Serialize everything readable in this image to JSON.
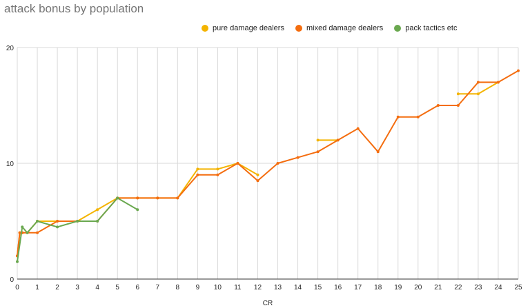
{
  "chart_data": {
    "type": "line",
    "title": "attack bonus by population",
    "xlabel": "CR",
    "ylabel": "",
    "xlim": [
      0,
      25
    ],
    "ylim": [
      0,
      20
    ],
    "x_ticks": [
      0,
      1,
      2,
      3,
      4,
      5,
      6,
      7,
      8,
      9,
      10,
      11,
      12,
      13,
      14,
      15,
      16,
      17,
      18,
      19,
      20,
      21,
      22,
      23,
      24,
      25
    ],
    "y_ticks": [
      0,
      10,
      20
    ],
    "grid": true,
    "legend_position": "top",
    "series": [
      {
        "name": "pure damage dealers",
        "color": "#f4b400",
        "segments": [
          [
            [
              0,
              2
            ],
            [
              0.125,
              4
            ],
            [
              0.25,
              4
            ],
            [
              0.5,
              4
            ],
            [
              1,
              5
            ],
            [
              2,
              5
            ],
            [
              3,
              5
            ],
            [
              4,
              6
            ],
            [
              5,
              7
            ],
            [
              6,
              7
            ],
            [
              7,
              7
            ],
            [
              8,
              7
            ],
            [
              9,
              9.5
            ],
            [
              10,
              9.5
            ],
            [
              11,
              10
            ],
            [
              12,
              9
            ]
          ],
          [
            [
              15,
              12
            ],
            [
              16,
              12
            ]
          ],
          [
            [
              22,
              16
            ],
            [
              23,
              16
            ],
            [
              24,
              17
            ]
          ]
        ]
      },
      {
        "name": "mixed damage dealers",
        "color": "#f46d0f",
        "segments": [
          [
            [
              0,
              2
            ],
            [
              0.125,
              4
            ],
            [
              0.25,
              4
            ],
            [
              0.5,
              4
            ],
            [
              1,
              4
            ],
            [
              2,
              5
            ],
            [
              3,
              5
            ],
            [
              4,
              5
            ],
            [
              5,
              7
            ],
            [
              6,
              7
            ],
            [
              7,
              7
            ],
            [
              8,
              7
            ],
            [
              9,
              9
            ],
            [
              10,
              9
            ],
            [
              11,
              10
            ],
            [
              12,
              8.5
            ],
            [
              13,
              10
            ],
            [
              14,
              10.5
            ],
            [
              15,
              11
            ],
            [
              16,
              12
            ],
            [
              17,
              13
            ],
            [
              18,
              11
            ],
            [
              19,
              14
            ],
            [
              20,
              14
            ],
            [
              21,
              15
            ],
            [
              22,
              15
            ],
            [
              23,
              17
            ],
            [
              24,
              17
            ],
            [
              25,
              18
            ]
          ]
        ]
      },
      {
        "name": "pack tactics etc",
        "color": "#6aa84f",
        "segments": [
          [
            [
              0,
              1.5
            ],
            [
              0.25,
              4.5
            ],
            [
              0.5,
              4
            ],
            [
              1,
              5
            ],
            [
              2,
              4.5
            ],
            [
              3,
              5
            ],
            [
              4,
              5
            ],
            [
              5,
              7
            ],
            [
              6,
              6
            ]
          ]
        ]
      }
    ]
  }
}
